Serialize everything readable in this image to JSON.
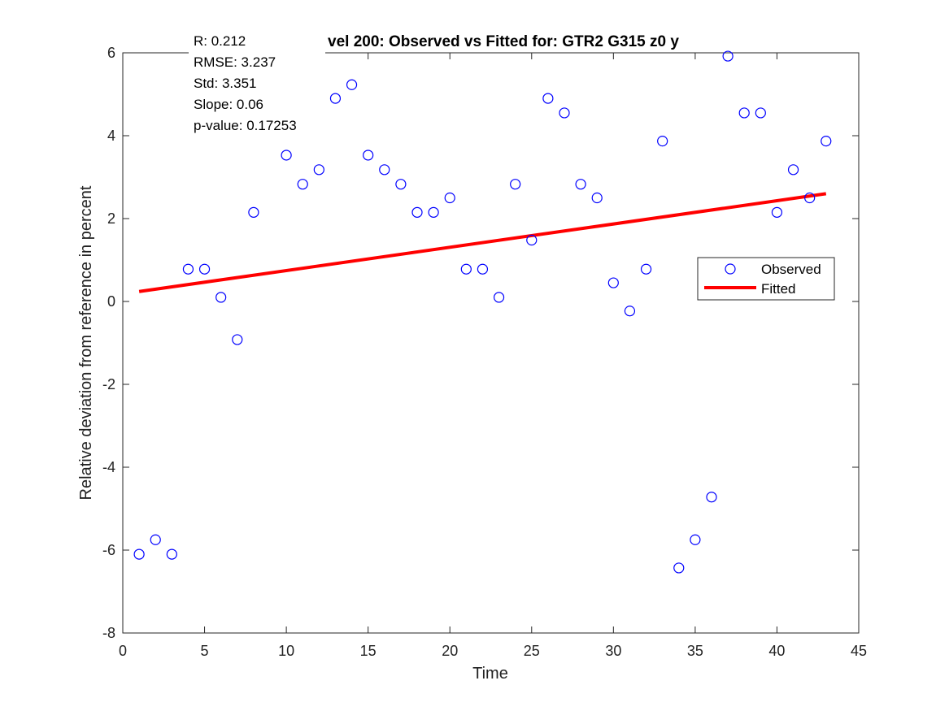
{
  "chart_data": {
    "type": "scatter",
    "title": "vel 200: Observed vs Fitted for: GTR2 G315 z0 y",
    "xlabel": "Time",
    "ylabel": "Relative deviation from reference in percent",
    "xlim": [
      0,
      45
    ],
    "ylim": [
      -8,
      6
    ],
    "xticks": [
      0,
      5,
      10,
      15,
      20,
      25,
      30,
      35,
      40,
      45
    ],
    "yticks": [
      -8,
      -6,
      -4,
      -2,
      0,
      2,
      4,
      6
    ],
    "grid": false,
    "legend_position": "right",
    "stats": [
      "R: 0.212",
      "RMSE: 3.237",
      "Std: 3.351",
      "Slope: 0.06",
      "p-value: 0.17253"
    ],
    "series": [
      {
        "name": "Observed",
        "kind": "scatter",
        "marker": "circle",
        "color": "#0000ff",
        "x": [
          1,
          2,
          3,
          4,
          5,
          6,
          7,
          8,
          10,
          11,
          12,
          13,
          14,
          15,
          16,
          17,
          18,
          19,
          20,
          21,
          22,
          23,
          24,
          25,
          26,
          27,
          28,
          29,
          30,
          31,
          32,
          33,
          34,
          35,
          36,
          37,
          38,
          39,
          40,
          41,
          42,
          43
        ],
        "y": [
          -6.1,
          -5.75,
          -6.1,
          0.78,
          0.78,
          0.1,
          -0.92,
          2.15,
          3.53,
          2.83,
          3.18,
          4.9,
          5.23,
          3.53,
          3.18,
          2.83,
          2.15,
          2.15,
          2.5,
          0.78,
          0.78,
          0.1,
          2.83,
          1.48,
          4.9,
          4.55,
          2.83,
          2.5,
          0.45,
          -0.23,
          0.78,
          3.87,
          -6.43,
          -5.75,
          -4.72,
          5.92,
          4.55,
          4.55,
          2.15,
          3.18,
          2.5,
          3.87
        ]
      },
      {
        "name": "Fitted",
        "kind": "line",
        "color": "#ff0000",
        "x": [
          1,
          43
        ],
        "y": [
          0.24,
          2.6
        ]
      }
    ]
  }
}
